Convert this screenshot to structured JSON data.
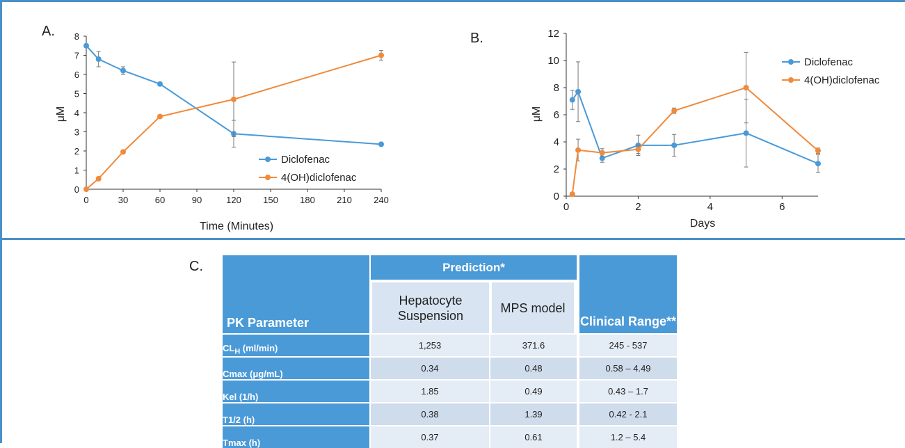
{
  "panel_labels": {
    "a": "A.",
    "b": "B.",
    "c": "C."
  },
  "chart_data": [
    {
      "type": "line",
      "xlabel": "Time (Minutes)",
      "ylabel": "μM",
      "xlim": [
        0,
        240
      ],
      "ylim": [
        0,
        8
      ],
      "xticks": [
        0,
        30,
        60,
        90,
        120,
        150,
        180,
        210,
        240
      ],
      "yticks": [
        0,
        1,
        2,
        3,
        4,
        5,
        6,
        7,
        8
      ],
      "legend_position": "lower-right",
      "series": [
        {
          "name": "Diclofenac",
          "color": "#4a9ad8",
          "x": [
            0,
            10,
            30,
            60,
            120,
            240
          ],
          "y": [
            7.5,
            6.8,
            6.2,
            5.5,
            2.9,
            2.35
          ],
          "err": [
            0,
            0.4,
            0.2,
            0,
            0.7,
            0
          ]
        },
        {
          "name": "4(OH)diclofenac",
          "color": "#f08a3c",
          "x": [
            0,
            10,
            30,
            60,
            120,
            240
          ],
          "y": [
            0,
            0.55,
            1.95,
            3.8,
            4.7,
            7.0
          ],
          "err": [
            0,
            0,
            0,
            0,
            1.95,
            0.25
          ]
        }
      ]
    },
    {
      "type": "line",
      "xlabel": "Days",
      "ylabel": "μM",
      "xlim": [
        0,
        7
      ],
      "ylim": [
        0,
        12
      ],
      "xticks": [
        0,
        2,
        4,
        6
      ],
      "yticks": [
        0,
        2,
        4,
        6,
        8,
        10,
        12
      ],
      "legend_position": "top-right",
      "series": [
        {
          "name": "Diclofenac",
          "color": "#4a9ad8",
          "x": [
            0.17,
            0.33,
            1,
            2,
            3,
            5,
            7
          ],
          "y": [
            7.1,
            7.7,
            2.8,
            3.75,
            3.75,
            4.65,
            2.4
          ],
          "err": [
            0.7,
            2.2,
            0.3,
            0.75,
            0.8,
            2.5,
            0.65
          ]
        },
        {
          "name": "4(OH)diclofenac",
          "color": "#f08a3c",
          "x": [
            0.17,
            0.33,
            1,
            2,
            3,
            5,
            7
          ],
          "y": [
            0.15,
            3.4,
            3.2,
            3.45,
            6.3,
            8.0,
            3.35
          ],
          "err": [
            0,
            0.8,
            0.3,
            0.3,
            0.2,
            2.6,
            0.2
          ]
        }
      ]
    },
    {
      "type": "table",
      "prediction_header": "Prediction*",
      "headers": [
        "PK Parameter",
        "Hepatocyte Suspension",
        "MPS model",
        "Clinical Range**"
      ],
      "rows": [
        {
          "param": "CL",
          "sub": "H",
          "unit": " (ml/min)",
          "values": [
            "1,253",
            "371.6",
            "245 - 537"
          ]
        },
        {
          "param": "Cmax (μg/mL)",
          "sub": "",
          "unit": "",
          "values": [
            "0.34",
            "0.48",
            "0.58 – 4.49"
          ]
        },
        {
          "param": "Kel (1/h)",
          "sub": "",
          "unit": "",
          "values": [
            "1.85",
            "0.49",
            "0.43 – 1.7"
          ]
        },
        {
          "param": "T1/2 (h)",
          "sub": "",
          "unit": "",
          "values": [
            "0.38",
            "1.39",
            "0.42 - 2.1"
          ]
        },
        {
          "param": "Tmax (h)",
          "sub": "",
          "unit": "",
          "values": [
            "0.37",
            "0.61",
            "1.2 – 5.4"
          ]
        }
      ]
    }
  ]
}
